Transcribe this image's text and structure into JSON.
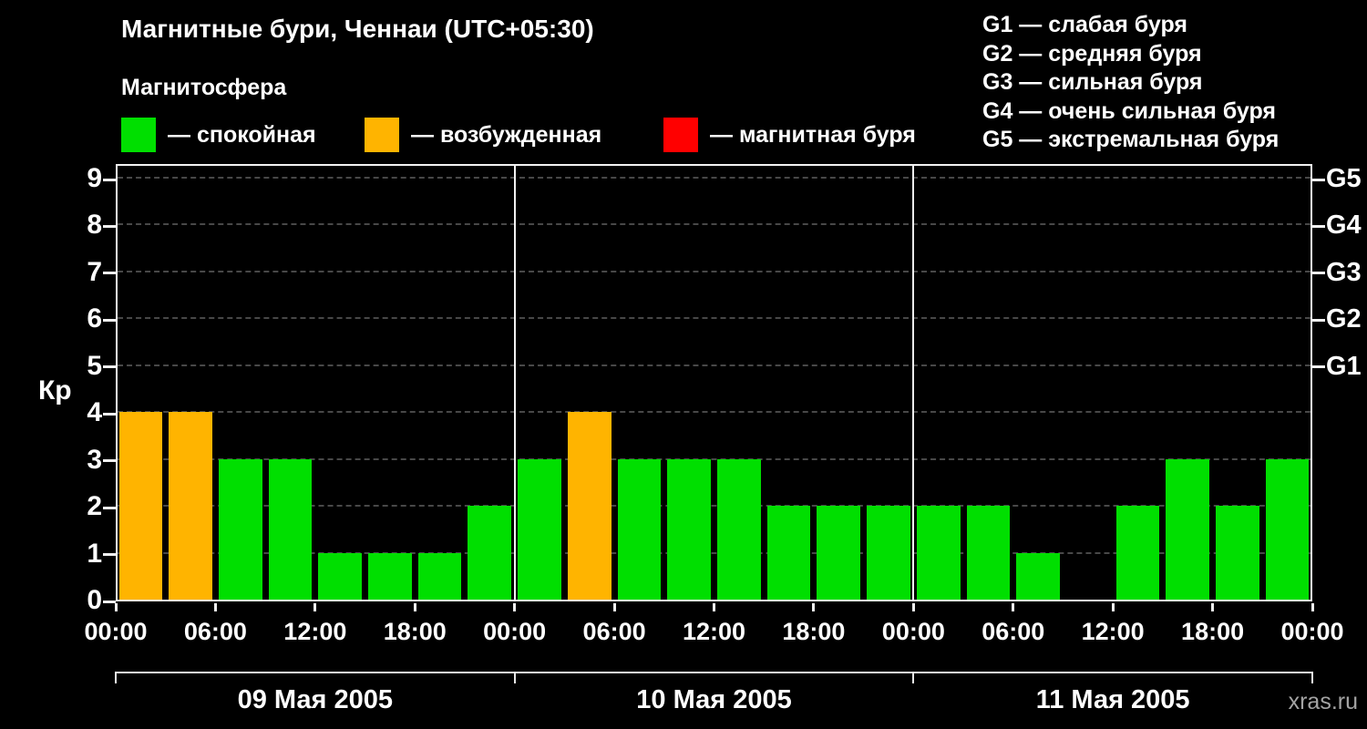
{
  "title": "Магнитные бури, Ченнаи (UTC+05:30)",
  "subtitle": "Магнитосфера",
  "legend": [
    {
      "name": "quiet",
      "label": "— спокойная",
      "color": "#00df00"
    },
    {
      "name": "excited",
      "label": "— возбужденная",
      "color": "#ffb400"
    },
    {
      "name": "storm",
      "label": "— магнитная буря",
      "color": "#ff0000"
    }
  ],
  "storm_scale": [
    "G1 — слабая буря",
    "G2 — средняя буря",
    "G3 — сильная буря",
    "G4 — очень сильная буря",
    "G5 — экстремальная буря"
  ],
  "watermark": "xras.ru",
  "chart_data": {
    "type": "bar",
    "title": "Магнитные бури, Ченнаи (UTC+05:30)",
    "ylabel": "Кр",
    "ylim": [
      0,
      9.33
    ],
    "yticks": [
      0,
      1,
      2,
      3,
      4,
      5,
      6,
      7,
      8,
      9
    ],
    "grid": "horizontal-dashed",
    "legend_position": "top",
    "bar_interval_hours": 3,
    "x_hours_total": 72,
    "x_tick_labels": [
      "00:00",
      "06:00",
      "12:00",
      "18:00",
      "00:00",
      "06:00",
      "12:00",
      "18:00",
      "00:00",
      "06:00",
      "12:00",
      "18:00",
      "00:00"
    ],
    "right_axis": [
      {
        "label": "G1",
        "value": 5
      },
      {
        "label": "G2",
        "value": 6
      },
      {
        "label": "G3",
        "value": 7
      },
      {
        "label": "G4",
        "value": 8
      },
      {
        "label": "G5",
        "value": 9
      }
    ],
    "palette": {
      "quiet": "#00df00",
      "excited": "#ffb400",
      "storm": "#ff0000"
    },
    "days": [
      {
        "date": "09 Мая 2005",
        "kp_values": [
          4,
          4,
          3,
          3,
          1,
          1,
          1,
          2
        ],
        "states": [
          "excited",
          "excited",
          "quiet",
          "quiet",
          "quiet",
          "quiet",
          "quiet",
          "quiet"
        ]
      },
      {
        "date": "10 Мая 2005",
        "kp_values": [
          3,
          4,
          3,
          3,
          3,
          2,
          2,
          2
        ],
        "states": [
          "quiet",
          "excited",
          "quiet",
          "quiet",
          "quiet",
          "quiet",
          "quiet",
          "quiet"
        ]
      },
      {
        "date": "11 Мая 2005",
        "kp_values": [
          2,
          2,
          1,
          null,
          2,
          3,
          2,
          3
        ],
        "states": [
          "quiet",
          "quiet",
          "quiet",
          null,
          "quiet",
          "quiet",
          "quiet",
          "quiet"
        ]
      }
    ]
  }
}
